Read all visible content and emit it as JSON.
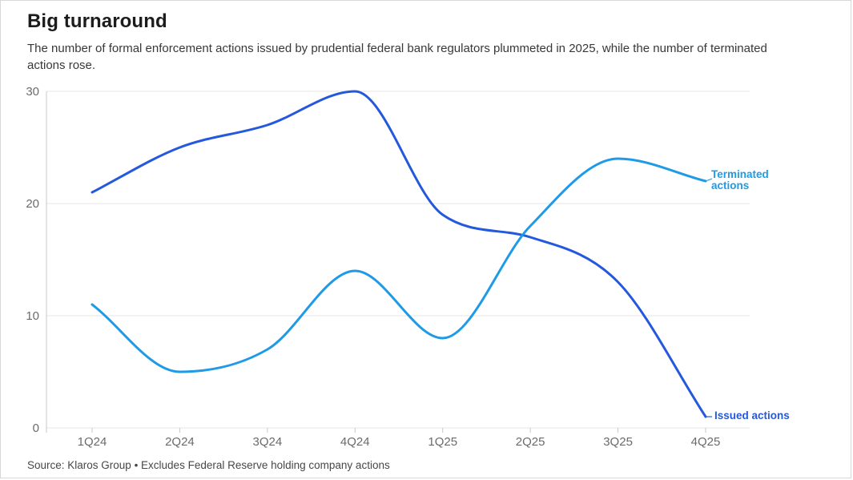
{
  "page": {
    "title": "Big turnaround",
    "subtitle": "The number of formal enforcement actions issued by prudential federal bank regulators plummeted in 2025, while the number of terminated actions rose.",
    "source": "Source: Klaros Group • Excludes Federal Reserve holding company actions"
  },
  "colors": {
    "issued_line": "#2458dd",
    "terminated_line": "#1e9ae6",
    "gridline": "#e5e5e5",
    "axis": "#c9c9c9",
    "tick_label": "#6b6b6b"
  },
  "chart_data": {
    "type": "line",
    "categories": [
      "1Q24",
      "2Q24",
      "3Q24",
      "4Q24",
      "1Q25",
      "2Q25",
      "3Q25",
      "4Q25"
    ],
    "series": [
      {
        "name": "Issued actions",
        "color": "#2458dd",
        "values": [
          21,
          25,
          27,
          30,
          19,
          17,
          13,
          1
        ]
      },
      {
        "name": "Terminated actions",
        "color": "#1e9ae6",
        "values": [
          11,
          5,
          7,
          14,
          8,
          18,
          24,
          22
        ]
      }
    ],
    "title": "Big turnaround",
    "xlabel": "",
    "ylabel": "",
    "ylim": [
      0,
      30
    ],
    "yticks": [
      0,
      10,
      20,
      30
    ],
    "grid": "horizontal",
    "curve": "monotone-smoothed",
    "legend_position": "inline end-of-line labels"
  }
}
